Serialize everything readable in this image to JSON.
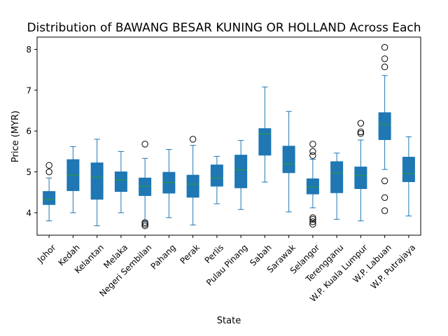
{
  "chart_data": {
    "type": "box",
    "title": "Distribution of BAWANG BESAR KUNING OR HOLLAND Across Each",
    "xlabel": "State",
    "ylabel": "Price (MYR)",
    "ylim": [
      3.45,
      8.3
    ],
    "yticks": [
      4,
      5,
      6,
      7,
      8
    ],
    "colors": {
      "box_fill": "#1f77b4",
      "median": "#2ca02c",
      "whisker": "#1f77b4",
      "outlier": "#000000"
    },
    "categories": [
      "Johor",
      "Kedah",
      "Kelantan",
      "Melaka",
      "Negeri Sembilan",
      "Pahang",
      "Perak",
      "Perlis",
      "Pulau Pinang",
      "Sabah",
      "Sarawak",
      "Selangor",
      "Terengganu",
      "W.P. Kuala Lumpur",
      "W.P. Labuan",
      "W.P. Putrajaya"
    ],
    "boxes": [
      {
        "whislo": 3.8,
        "q1": 4.2,
        "med": 4.32,
        "q3": 4.52,
        "whishi": 4.85,
        "fliers": [
          5.0,
          5.16
        ]
      },
      {
        "whislo": 4.0,
        "q1": 4.54,
        "med": 4.92,
        "q3": 5.3,
        "whishi": 5.62,
        "fliers": []
      },
      {
        "whislo": 3.68,
        "q1": 4.33,
        "med": 4.87,
        "q3": 5.22,
        "whishi": 5.8,
        "fliers": []
      },
      {
        "whislo": 4.0,
        "q1": 4.52,
        "med": 4.8,
        "q3": 5.0,
        "whishi": 5.5,
        "fliers": []
      },
      {
        "whislo": 3.8,
        "q1": 4.42,
        "med": 4.65,
        "q3": 4.85,
        "whishi": 5.33,
        "fliers": [
          5.68,
          3.76,
          3.72,
          3.68
        ]
      },
      {
        "whislo": 3.88,
        "q1": 4.48,
        "med": 4.74,
        "q3": 4.99,
        "whishi": 5.55,
        "fliers": []
      },
      {
        "whislo": 3.7,
        "q1": 4.38,
        "med": 4.7,
        "q3": 4.92,
        "whishi": 5.65,
        "fliers": [
          5.8
        ]
      },
      {
        "whislo": 4.22,
        "q1": 4.65,
        "med": 4.85,
        "q3": 5.17,
        "whishi": 5.38,
        "fliers": []
      },
      {
        "whislo": 4.08,
        "q1": 4.61,
        "med": 5.05,
        "q3": 5.41,
        "whishi": 5.77,
        "fliers": []
      },
      {
        "whislo": 4.75,
        "q1": 5.41,
        "med": 5.93,
        "q3": 6.06,
        "whishi": 7.08,
        "fliers": []
      },
      {
        "whislo": 4.02,
        "q1": 4.98,
        "med": 5.2,
        "q3": 5.63,
        "whishi": 6.48,
        "fliers": []
      },
      {
        "whislo": 4.12,
        "q1": 4.46,
        "med": 4.63,
        "q3": 4.83,
        "whishi": 5.31,
        "fliers": [
          5.68,
          5.5,
          5.4,
          3.88,
          3.84,
          3.78,
          3.72
        ]
      },
      {
        "whislo": 3.84,
        "q1": 4.49,
        "med": 4.97,
        "q3": 5.25,
        "whishi": 5.46,
        "fliers": []
      },
      {
        "whislo": 3.8,
        "q1": 4.59,
        "med": 4.91,
        "q3": 5.12,
        "whishi": 5.78,
        "fliers": [
          6.19,
          5.98,
          5.94
        ]
      },
      {
        "whislo": 5.06,
        "q1": 5.79,
        "med": 6.16,
        "q3": 6.45,
        "whishi": 7.36,
        "fliers": [
          8.05,
          7.77,
          7.57,
          4.78,
          4.37,
          4.05
        ]
      },
      {
        "whislo": 3.92,
        "q1": 4.76,
        "med": 4.96,
        "q3": 5.36,
        "whishi": 5.86,
        "fliers": []
      }
    ]
  }
}
